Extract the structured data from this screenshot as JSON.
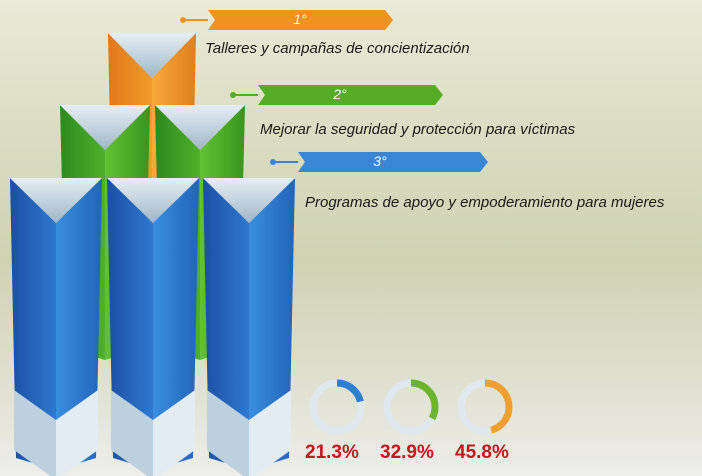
{
  "ranks": [
    {
      "rank": "1°",
      "label": "Talleres y campañas de concientización"
    },
    {
      "rank": "2°",
      "label": "Mejorar la seguridad y protección para víctimas"
    },
    {
      "rank": "3°",
      "label": "Programas de apoyo y empoderamiento para mujeres"
    }
  ],
  "donuts": {
    "values": [
      21.3,
      32.9,
      45.8
    ],
    "value_labels": [
      "21.3%",
      "32.9%",
      "45.8%"
    ],
    "colors": [
      "#2e7fd0",
      "#6bb52e",
      "#f0a030"
    ]
  }
}
